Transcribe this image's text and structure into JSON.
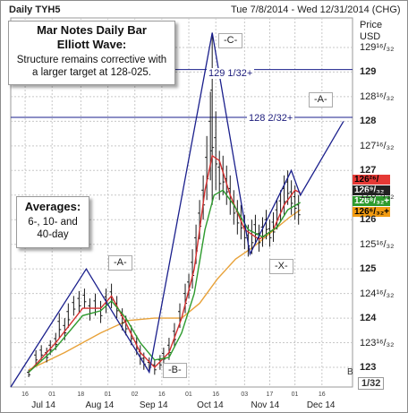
{
  "header": {
    "title": "Daily TYH5",
    "date_range": "Tue 7/8/2014 - Wed 12/31/2014 (CHG)"
  },
  "callout_top": {
    "title_line1": "Mar Notes Daily Bar",
    "title_line2": "Elliott Wave:",
    "body_line1": "Structure remains corrective with",
    "body_line2": "a larger target at 128-025."
  },
  "callout_avg": {
    "title": "Averages:",
    "line1": "6-, 10- and",
    "line2": "40-day"
  },
  "axis": {
    "price_label1": "Price",
    "price_label2": "USD",
    "fraction_label": "1/32",
    "corner_label": "B"
  },
  "wave_labels": {
    "c": "-C-",
    "a_right": "-A-",
    "a_left": "-A-",
    "b": "-B-",
    "x": "-X-"
  },
  "levels": [
    {
      "label": "129 1/32+",
      "value": 129.05
    },
    {
      "label": "128 2/32+",
      "value": 128.08
    }
  ],
  "price_tags": [
    {
      "label": "126²⁶/₃₂+",
      "bg": "#e53935",
      "fg": "#000000"
    },
    {
      "label": "126⁹/₃₂",
      "bg": "#222222",
      "fg": "#ffffff"
    },
    {
      "label": "126⁸/₃₂+",
      "bg": "#2e9b2e",
      "fg": "#ffffff"
    },
    {
      "label": "126⁶/₃₂+",
      "bg": "#f39c12",
      "fg": "#000000"
    }
  ],
  "colors": {
    "grid": "#c8c8c8",
    "bars": "#1a1a1a",
    "wave": "#1a1f8c",
    "ma6": "#d32f2f",
    "ma10": "#2e9b2e",
    "ma40": "#e8a23a"
  },
  "chart_data": {
    "type": "line",
    "title": "Daily TYH5",
    "ylabel": "Price USD",
    "ylim": [
      122.6,
      130.1
    ],
    "y_ticks": [
      {
        "value": 123,
        "label": "123"
      },
      {
        "value": 123.5,
        "label": "123¹⁶/₃₂"
      },
      {
        "value": 124,
        "label": "124"
      },
      {
        "value": 124.5,
        "label": "124¹⁶/₃₂"
      },
      {
        "value": 125,
        "label": "125"
      },
      {
        "value": 125.5,
        "label": "125¹⁶/₃₂"
      },
      {
        "value": 126,
        "label": "126"
      },
      {
        "value": 126.5,
        "label": "126¹⁶/₃₂"
      },
      {
        "value": 127,
        "label": "127"
      },
      {
        "value": 127.5,
        "label": "127¹⁶/₃₂"
      },
      {
        "value": 128,
        "label": "128"
      },
      {
        "value": 128.5,
        "label": "128¹⁶/₃₂"
      },
      {
        "value": 129,
        "label": "129"
      },
      {
        "value": 129.5,
        "label": "129¹⁶/₃₂"
      }
    ],
    "x_months": [
      {
        "label": "Jul 14",
        "day": 20
      },
      {
        "label": "Aug 14",
        "day": 50
      },
      {
        "label": "Sep 14",
        "day": 80
      },
      {
        "label": "Oct 14",
        "day": 112
      },
      {
        "label": "Nov 14",
        "day": 142
      },
      {
        "label": "Dec 14",
        "day": 173
      }
    ],
    "x_days": [
      {
        "label": "16",
        "day": 8
      },
      {
        "label": "01",
        "day": 23
      },
      {
        "label": "18",
        "day": 39
      },
      {
        "label": "01",
        "day": 54
      },
      {
        "label": "02",
        "day": 69
      },
      {
        "label": "16",
        "day": 84
      },
      {
        "label": "01",
        "day": 99
      },
      {
        "label": "16",
        "day": 114
      },
      {
        "label": "03",
        "day": 130
      },
      {
        "label": "17",
        "day": 144
      },
      {
        "label": "01",
        "day": 158
      },
      {
        "label": "16",
        "day": 173
      }
    ],
    "xlim": [
      0,
      190
    ],
    "ohlc": [
      {
        "day": 10,
        "h": 122.95,
        "l": 122.8
      },
      {
        "day": 14,
        "h": 123.35,
        "l": 123.05
      },
      {
        "day": 17,
        "h": 123.45,
        "l": 123.15
      },
      {
        "day": 20,
        "h": 123.4,
        "l": 123.1
      },
      {
        "day": 22,
        "h": 123.55,
        "l": 123.25
      },
      {
        "day": 25,
        "h": 123.7,
        "l": 123.35
      },
      {
        "day": 27,
        "h": 124.1,
        "l": 123.6
      },
      {
        "day": 30,
        "h": 124.0,
        "l": 123.55
      },
      {
        "day": 32,
        "h": 124.3,
        "l": 123.8
      },
      {
        "day": 35,
        "h": 124.45,
        "l": 124.05
      },
      {
        "day": 38,
        "h": 124.55,
        "l": 124.1
      },
      {
        "day": 41,
        "h": 124.6,
        "l": 124.2
      },
      {
        "day": 44,
        "h": 124.4,
        "l": 123.95
      },
      {
        "day": 47,
        "h": 124.5,
        "l": 124.05
      },
      {
        "day": 50,
        "h": 124.35,
        "l": 123.9
      },
      {
        "day": 53,
        "h": 124.6,
        "l": 124.1
      },
      {
        "day": 56,
        "h": 124.7,
        "l": 124.2
      },
      {
        "day": 59,
        "h": 124.45,
        "l": 124.0
      },
      {
        "day": 62,
        "h": 124.2,
        "l": 123.75
      },
      {
        "day": 64,
        "h": 124.05,
        "l": 123.65
      },
      {
        "day": 67,
        "h": 123.85,
        "l": 123.45
      },
      {
        "day": 70,
        "h": 123.65,
        "l": 123.25
      },
      {
        "day": 72,
        "h": 123.45,
        "l": 123.05
      },
      {
        "day": 74,
        "h": 123.3,
        "l": 122.95
      },
      {
        "day": 77,
        "h": 123.2,
        "l": 122.9
      },
      {
        "day": 80,
        "h": 123.15,
        "l": 122.85
      },
      {
        "day": 83,
        "h": 123.25,
        "l": 122.95
      },
      {
        "day": 85,
        "h": 123.4,
        "l": 123.05
      },
      {
        "day": 88,
        "h": 123.6,
        "l": 123.15
      },
      {
        "day": 91,
        "h": 123.9,
        "l": 123.4
      },
      {
        "day": 94,
        "h": 124.3,
        "l": 123.8
      },
      {
        "day": 97,
        "h": 124.7,
        "l": 124.1
      },
      {
        "day": 99,
        "h": 124.9,
        "l": 124.4
      },
      {
        "day": 101,
        "h": 125.4,
        "l": 124.6
      },
      {
        "day": 103,
        "h": 125.9,
        "l": 125.1
      },
      {
        "day": 105,
        "h": 126.4,
        "l": 125.6
      },
      {
        "day": 107,
        "h": 126.9,
        "l": 126.0
      },
      {
        "day": 109,
        "h": 127.7,
        "l": 126.4
      },
      {
        "day": 111,
        "h": 128.6,
        "l": 126.8
      },
      {
        "day": 112,
        "h": 129.8,
        "l": 126.3
      },
      {
        "day": 114,
        "h": 128.2,
        "l": 126.6
      },
      {
        "day": 116,
        "h": 127.4,
        "l": 126.4
      },
      {
        "day": 118,
        "h": 127.3,
        "l": 126.5
      },
      {
        "day": 120,
        "h": 127.1,
        "l": 126.3
      },
      {
        "day": 122,
        "h": 126.9,
        "l": 126.1
      },
      {
        "day": 124,
        "h": 126.6,
        "l": 125.9
      },
      {
        "day": 126,
        "h": 126.4,
        "l": 125.7
      },
      {
        "day": 128,
        "h": 126.3,
        "l": 125.6
      },
      {
        "day": 130,
        "h": 126.1,
        "l": 125.4
      },
      {
        "day": 132,
        "h": 125.9,
        "l": 125.25
      },
      {
        "day": 134,
        "h": 126.0,
        "l": 125.3
      },
      {
        "day": 136,
        "h": 126.1,
        "l": 125.5
      },
      {
        "day": 138,
        "h": 125.9,
        "l": 125.35
      },
      {
        "day": 140,
        "h": 126.05,
        "l": 125.45
      },
      {
        "day": 142,
        "h": 126.2,
        "l": 125.6
      },
      {
        "day": 144,
        "h": 126.0,
        "l": 125.45
      },
      {
        "day": 146,
        "h": 126.15,
        "l": 125.55
      },
      {
        "day": 148,
        "h": 126.4,
        "l": 125.8
      },
      {
        "day": 150,
        "h": 126.6,
        "l": 125.95
      },
      {
        "day": 152,
        "h": 126.9,
        "l": 126.1
      },
      {
        "day": 154,
        "h": 127.0,
        "l": 126.3
      },
      {
        "day": 156,
        "h": 126.8,
        "l": 126.1
      },
      {
        "day": 158,
        "h": 126.7,
        "l": 126.0
      },
      {
        "day": 160,
        "h": 126.5,
        "l": 125.9
      }
    ],
    "series": [
      {
        "name": "6-day",
        "color": "#d32f2f",
        "points": [
          [
            10,
            122.9
          ],
          [
            25,
            123.5
          ],
          [
            40,
            124.2
          ],
          [
            50,
            124.2
          ],
          [
            56,
            124.45
          ],
          [
            64,
            123.9
          ],
          [
            72,
            123.3
          ],
          [
            80,
            123.0
          ],
          [
            88,
            123.3
          ],
          [
            95,
            124.0
          ],
          [
            102,
            125.0
          ],
          [
            108,
            126.6
          ],
          [
            112,
            127.3
          ],
          [
            116,
            127.2
          ],
          [
            122,
            126.5
          ],
          [
            130,
            125.8
          ],
          [
            138,
            125.6
          ],
          [
            146,
            125.8
          ],
          [
            152,
            126.3
          ],
          [
            158,
            126.6
          ],
          [
            161,
            126.55
          ]
        ]
      },
      {
        "name": "10-day",
        "color": "#2e9b2e",
        "points": [
          [
            10,
            122.9
          ],
          [
            25,
            123.4
          ],
          [
            40,
            124.05
          ],
          [
            50,
            124.15
          ],
          [
            56,
            124.35
          ],
          [
            64,
            124.0
          ],
          [
            72,
            123.5
          ],
          [
            80,
            123.15
          ],
          [
            88,
            123.2
          ],
          [
            95,
            123.7
          ],
          [
            102,
            124.5
          ],
          [
            108,
            125.8
          ],
          [
            113,
            126.5
          ],
          [
            118,
            126.6
          ],
          [
            124,
            126.3
          ],
          [
            132,
            125.8
          ],
          [
            140,
            125.65
          ],
          [
            148,
            125.85
          ],
          [
            154,
            126.2
          ],
          [
            161,
            126.35
          ]
        ]
      },
      {
        "name": "40-day",
        "color": "#e8a23a",
        "points": [
          [
            10,
            122.95
          ],
          [
            30,
            123.3
          ],
          [
            50,
            123.7
          ],
          [
            65,
            123.95
          ],
          [
            80,
            124.0
          ],
          [
            95,
            124.0
          ],
          [
            105,
            124.3
          ],
          [
            115,
            124.8
          ],
          [
            125,
            125.2
          ],
          [
            135,
            125.45
          ],
          [
            145,
            125.75
          ],
          [
            155,
            126.05
          ],
          [
            161,
            126.2
          ]
        ]
      }
    ],
    "wave": [
      [
        0,
        122.6
      ],
      [
        42,
        125.0
      ],
      [
        77,
        122.9
      ],
      [
        112,
        129.8
      ],
      [
        133,
        125.3
      ],
      [
        156,
        127.0
      ],
      [
        161,
        126.5
      ],
      [
        185,
        128.0
      ]
    ]
  }
}
